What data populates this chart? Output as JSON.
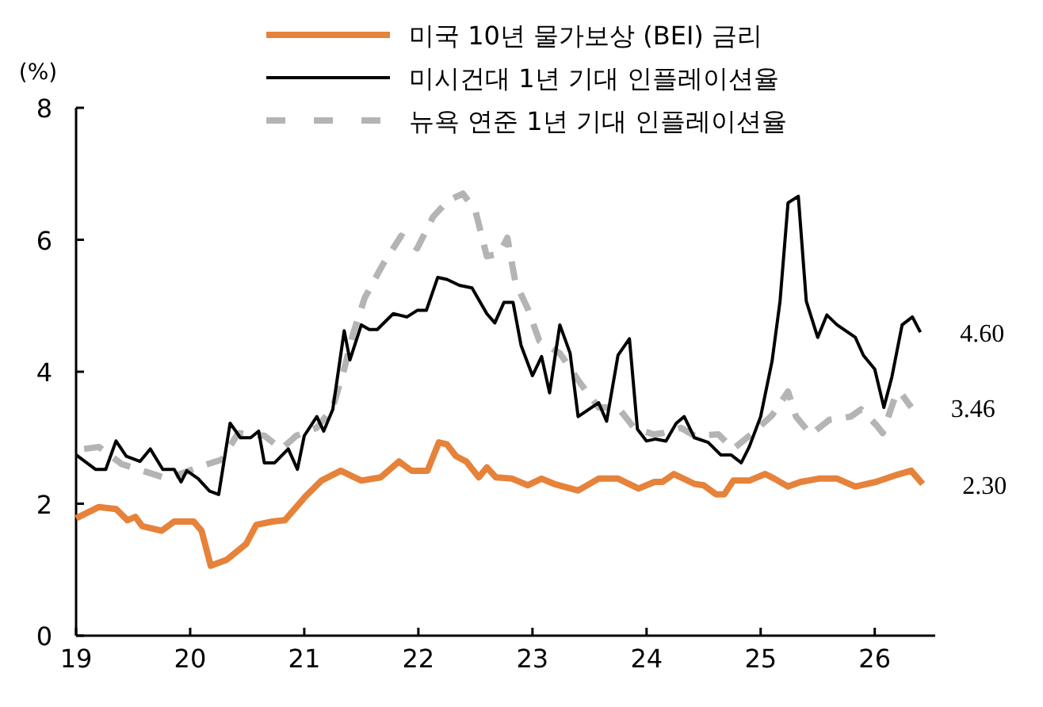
{
  "chart_data": {
    "type": "line",
    "ylabel": "(%)",
    "legend": "top",
    "xlim": [
      2019,
      2026.53
    ],
    "xticks": [
      {
        "value": 2019,
        "label": "19"
      },
      {
        "value": 2020,
        "label": "20"
      },
      {
        "value": 2021,
        "label": "21"
      },
      {
        "value": 2022,
        "label": "22"
      },
      {
        "value": 2023,
        "label": "23"
      },
      {
        "value": 2024,
        "label": "24"
      },
      {
        "value": 2025,
        "label": "25"
      },
      {
        "value": 2026,
        "label": "26"
      }
    ],
    "ylim": [
      0,
      8
    ],
    "yticks": [
      0,
      2,
      4,
      6,
      8
    ],
    "series": [
      {
        "name": "미국 10년 물가보상 (BEI) 금리",
        "color": "#e6823a",
        "line_style": "solid",
        "x": [
          2019.0,
          2019.2,
          2019.35,
          2019.45,
          2019.52,
          2019.58,
          2019.75,
          2019.86,
          2020.03,
          2020.1,
          2020.18,
          2020.32,
          2020.49,
          2020.58,
          2020.72,
          2020.83,
          2021.01,
          2021.15,
          2021.32,
          2021.5,
          2021.67,
          2021.83,
          2021.94,
          2022.08,
          2022.18,
          2022.25,
          2022.33,
          2022.42,
          2022.53,
          2022.6,
          2022.68,
          2022.82,
          2022.96,
          2023.08,
          2023.19,
          2023.4,
          2023.58,
          2023.75,
          2023.93,
          2024.07,
          2024.14,
          2024.24,
          2024.42,
          2024.5,
          2024.61,
          2024.68,
          2024.76,
          2024.9,
          2025.04,
          2025.12,
          2025.24,
          2025.35,
          2025.51,
          2025.67,
          2025.83,
          2026.01,
          2026.18,
          2026.32,
          2026.42
        ],
        "values": [
          1.78,
          1.95,
          1.92,
          1.75,
          1.8,
          1.66,
          1.59,
          1.73,
          1.73,
          1.59,
          1.06,
          1.15,
          1.39,
          1.68,
          1.73,
          1.75,
          2.11,
          2.35,
          2.5,
          2.35,
          2.4,
          2.64,
          2.5,
          2.5,
          2.93,
          2.9,
          2.72,
          2.64,
          2.4,
          2.55,
          2.4,
          2.38,
          2.28,
          2.38,
          2.3,
          2.2,
          2.38,
          2.38,
          2.23,
          2.33,
          2.33,
          2.45,
          2.3,
          2.28,
          2.14,
          2.14,
          2.35,
          2.35,
          2.45,
          2.38,
          2.26,
          2.33,
          2.38,
          2.38,
          2.26,
          2.33,
          2.43,
          2.5,
          2.3
        ]
      },
      {
        "name": "미시건대 1년 기대 인플레이션율",
        "color": "#000000",
        "line_style": "solid",
        "x": [
          2019.0,
          2019.17,
          2019.26,
          2019.35,
          2019.44,
          2019.56,
          2019.65,
          2019.76,
          2019.86,
          2019.92,
          2019.97,
          2020.07,
          2020.17,
          2020.25,
          2020.35,
          2020.44,
          2020.53,
          2020.6,
          2020.65,
          2020.74,
          2020.86,
          2020.94,
          2021.0,
          2021.11,
          2021.17,
          2021.25,
          2021.35,
          2021.4,
          2021.5,
          2021.57,
          2021.64,
          2021.78,
          2021.9,
          2021.99,
          2022.07,
          2022.17,
          2022.25,
          2022.36,
          2022.47,
          2022.6,
          2022.67,
          2022.75,
          2022.83,
          2022.9,
          2023.0,
          2023.08,
          2023.15,
          2023.24,
          2023.33,
          2023.4,
          2023.58,
          2023.65,
          2023.75,
          2023.85,
          2023.92,
          2024.0,
          2024.08,
          2024.17,
          2024.26,
          2024.33,
          2024.42,
          2024.54,
          2024.65,
          2024.74,
          2024.83,
          2024.9,
          2025.0,
          2025.1,
          2025.17,
          2025.24,
          2025.33,
          2025.4,
          2025.5,
          2025.58,
          2025.67,
          2025.83,
          2025.9,
          2026.0,
          2026.08,
          2026.15,
          2026.24,
          2026.33,
          2026.4
        ],
        "values": [
          2.74,
          2.52,
          2.52,
          2.95,
          2.72,
          2.64,
          2.83,
          2.52,
          2.52,
          2.33,
          2.5,
          2.38,
          2.19,
          2.14,
          3.22,
          3.0,
          3.0,
          3.1,
          2.62,
          2.62,
          2.83,
          2.52,
          3.03,
          3.32,
          3.1,
          3.43,
          4.62,
          4.18,
          4.71,
          4.64,
          4.64,
          4.88,
          4.83,
          4.93,
          4.93,
          5.43,
          5.4,
          5.31,
          5.27,
          4.88,
          4.74,
          5.05,
          5.05,
          4.4,
          3.94,
          4.23,
          3.68,
          4.71,
          4.28,
          3.32,
          3.53,
          3.25,
          4.25,
          4.5,
          3.13,
          2.95,
          2.98,
          2.95,
          3.22,
          3.32,
          3.0,
          2.93,
          2.74,
          2.74,
          2.62,
          2.86,
          3.32,
          4.16,
          5.07,
          6.56,
          6.66,
          5.07,
          4.52,
          4.86,
          4.71,
          4.52,
          4.25,
          4.04,
          3.46,
          3.92,
          4.71,
          4.83,
          4.6
        ]
      },
      {
        "name": "뉴욕 연준 1년 기대 인플레이션율",
        "color": "#b4b4b4",
        "line_style": "dashed",
        "x": [
          2019.07,
          2019.2,
          2019.4,
          2019.8,
          2020.1,
          2020.28,
          2020.42,
          2020.65,
          2020.8,
          2020.93,
          2021.11,
          2021.25,
          2021.35,
          2021.43,
          2021.53,
          2021.69,
          2021.85,
          2021.99,
          2022.13,
          2022.26,
          2022.39,
          2022.5,
          2022.6,
          2022.71,
          2022.78,
          2022.85,
          2022.96,
          2023.06,
          2023.24,
          2023.43,
          2023.58,
          2023.75,
          2023.89,
          2024.06,
          2024.14,
          2024.3,
          2024.42,
          2024.63,
          2024.76,
          2024.93,
          2025.1,
          2025.24,
          2025.31,
          2025.44,
          2025.6,
          2025.79,
          2025.88,
          2026.01,
          2026.07,
          2026.18,
          2026.22,
          2026.32
        ],
        "values": [
          2.83,
          2.86,
          2.6,
          2.38,
          2.57,
          2.67,
          3.07,
          3.03,
          2.83,
          3.03,
          3.15,
          3.46,
          4.04,
          4.59,
          5.12,
          5.63,
          6.06,
          5.87,
          6.35,
          6.59,
          6.7,
          6.44,
          5.75,
          5.79,
          6.03,
          5.36,
          4.95,
          4.47,
          4.28,
          3.8,
          3.46,
          3.46,
          3.15,
          3.05,
          3.07,
          3.15,
          3.03,
          3.05,
          2.83,
          3.07,
          3.34,
          3.7,
          3.32,
          3.05,
          3.27,
          3.32,
          3.43,
          3.2,
          3.07,
          3.63,
          3.7,
          3.46
        ]
      }
    ],
    "annotations": [
      {
        "text": "4.60",
        "x": 2026.4,
        "y": 4.6
      },
      {
        "text": "3.46",
        "x": 2026.32,
        "y": 3.46
      },
      {
        "text": "2.30",
        "x": 2026.42,
        "y": 2.3
      }
    ]
  }
}
